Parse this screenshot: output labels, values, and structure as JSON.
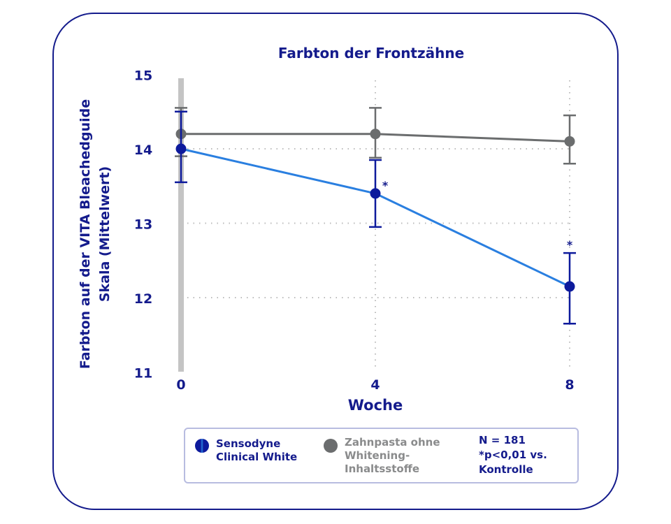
{
  "chart_data": {
    "type": "line",
    "title": "Farbton der Frontzähne",
    "xlabel": "Woche",
    "ylabel": "Farbton auf der VITA Bleachedguide Skala (Mittelwert)",
    "ylabel_lines": [
      "Farbton auf der VITA Bleachedguide",
      "Skala (Mittelwert)"
    ],
    "x": [
      0,
      4,
      8
    ],
    "x_tick_labels": [
      "0",
      "4",
      "8"
    ],
    "y_ticks": [
      15,
      14,
      13,
      12,
      11
    ],
    "y_tick_labels": [
      "15",
      "14",
      "13",
      "12",
      "11"
    ],
    "ylim": [
      11,
      15
    ],
    "grid": "dotted at y 12, 13, 14 and x 4, 8",
    "series": [
      {
        "name": "Sensodyne Clinical White",
        "color": "#0d1a9c",
        "line_color": "#2a7fe0",
        "values": [
          14.0,
          13.4,
          12.15
        ],
        "err_low": [
          13.55,
          12.95,
          11.65
        ],
        "err_high": [
          14.5,
          13.85,
          12.6
        ],
        "significance": [
          "",
          "*",
          "*"
        ]
      },
      {
        "name": "Zahnpasta ohne Whitening-Inhaltsstoffe",
        "color": "#6b6d6e",
        "values": [
          14.2,
          14.2,
          14.1
        ],
        "err_low": [
          13.9,
          13.88,
          13.8
        ],
        "err_high": [
          14.55,
          14.55,
          14.45
        ]
      }
    ]
  },
  "legend": {
    "series1_lines": [
      "Sensodyne",
      "Clinical White"
    ],
    "series2_lines": [
      "Zahnpasta ohne",
      "Whitening-",
      "Inhaltsstoffe"
    ],
    "note_lines": [
      "N = 181",
      "*p<0,01 vs.",
      "Kontrolle"
    ]
  },
  "colors": {
    "accent": "#141b8c",
    "grey": "#6b6d6e",
    "light_blue": "#2a7fe0"
  }
}
